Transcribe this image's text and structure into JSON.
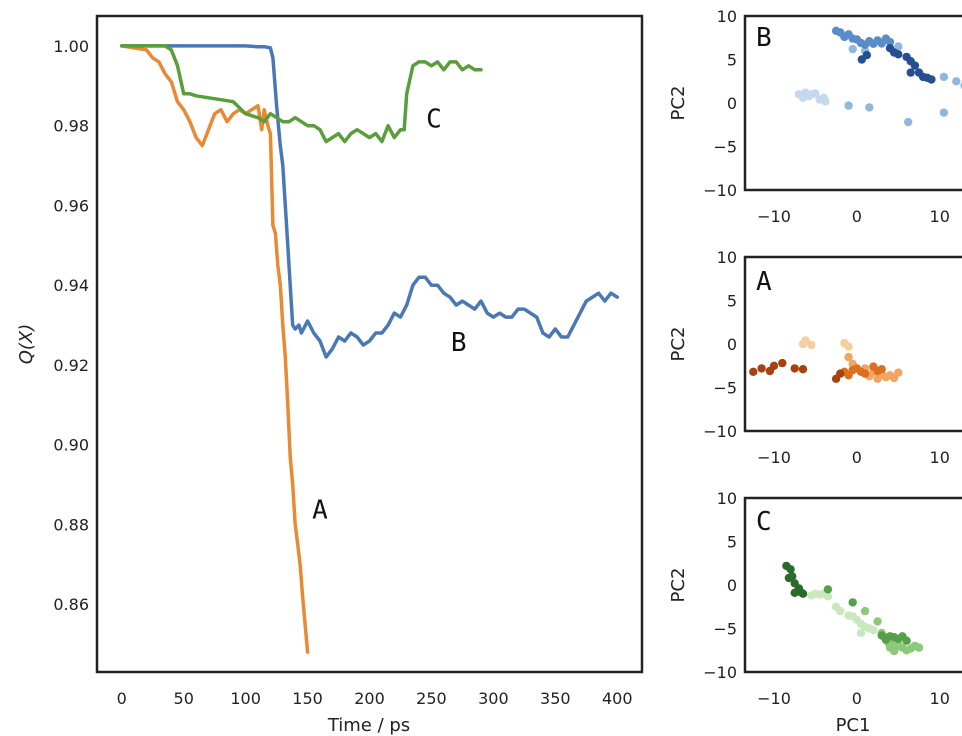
{
  "chart_data": [
    {
      "type": "line",
      "xlabel": "Time / ps",
      "ylabel": "Q(X)",
      "xlim": [
        -20,
        420
      ],
      "ylim": [
        0.843,
        1.0075
      ],
      "xticks": [
        0,
        50,
        100,
        150,
        200,
        250,
        300,
        350,
        400
      ],
      "yticks": [
        0.86,
        0.88,
        0.9,
        0.92,
        0.94,
        0.96,
        0.98,
        1.0
      ],
      "annotations": [
        {
          "text": "C",
          "x": 252,
          "y": 0.9795
        },
        {
          "text": "B",
          "x": 272,
          "y": 0.9235
        },
        {
          "text": "A",
          "x": 160,
          "y": 0.8815
        }
      ],
      "series": [
        {
          "name": "",
          "color": "#4a78b5",
          "x": [
            0,
            20,
            40,
            60,
            80,
            100,
            110,
            115,
            120,
            122,
            125,
            128,
            130,
            132,
            134,
            136,
            138,
            140,
            143,
            145,
            150,
            155,
            160,
            165,
            170,
            175,
            180,
            185,
            190,
            195,
            200,
            205,
            210,
            215,
            220,
            225,
            230,
            235,
            240,
            245,
            250,
            255,
            260,
            265,
            270,
            275,
            280,
            285,
            290,
            295,
            300,
            305,
            310,
            315,
            320,
            325,
            330,
            335,
            340,
            345,
            350,
            355,
            360,
            365,
            370,
            375,
            380,
            385,
            390,
            395,
            400
          ],
          "y": [
            1.0,
            1.0,
            1.0,
            1.0,
            1.0,
            1.0,
            0.9998,
            0.9998,
            0.9995,
            0.997,
            0.985,
            0.975,
            0.97,
            0.96,
            0.95,
            0.94,
            0.93,
            0.929,
            0.93,
            0.928,
            0.931,
            0.928,
            0.926,
            0.922,
            0.924,
            0.927,
            0.926,
            0.928,
            0.927,
            0.925,
            0.926,
            0.928,
            0.928,
            0.93,
            0.933,
            0.932,
            0.935,
            0.94,
            0.942,
            0.942,
            0.94,
            0.94,
            0.938,
            0.937,
            0.935,
            0.936,
            0.935,
            0.934,
            0.936,
            0.933,
            0.932,
            0.933,
            0.932,
            0.932,
            0.934,
            0.934,
            0.933,
            0.932,
            0.928,
            0.927,
            0.929,
            0.927,
            0.927,
            0.93,
            0.933,
            0.936,
            0.937,
            0.938,
            0.936,
            0.938,
            0.937
          ]
        },
        {
          "name": "",
          "color": "#e88a33",
          "x": [
            0,
            10,
            20,
            25,
            30,
            35,
            40,
            45,
            50,
            55,
            60,
            65,
            70,
            75,
            80,
            85,
            90,
            95,
            100,
            105,
            110,
            113,
            115,
            118,
            120,
            122,
            124,
            126,
            128,
            130,
            132,
            134,
            136,
            138,
            140,
            142,
            144,
            146,
            148,
            150
          ],
          "y": [
            1.0,
            0.9995,
            0.999,
            0.997,
            0.996,
            0.993,
            0.991,
            0.986,
            0.984,
            0.981,
            0.977,
            0.975,
            0.979,
            0.983,
            0.984,
            0.981,
            0.983,
            0.984,
            0.983,
            0.984,
            0.985,
            0.979,
            0.984,
            0.98,
            0.978,
            0.955,
            0.953,
            0.945,
            0.94,
            0.93,
            0.922,
            0.91,
            0.897,
            0.89,
            0.88,
            0.875,
            0.87,
            0.862,
            0.855,
            0.848
          ]
        },
        {
          "name": "",
          "color": "#5a9e3a",
          "x": [
            0,
            20,
            35,
            40,
            45,
            50,
            55,
            60,
            70,
            80,
            90,
            100,
            110,
            115,
            120,
            125,
            130,
            135,
            140,
            145,
            150,
            155,
            160,
            165,
            170,
            175,
            180,
            185,
            190,
            195,
            200,
            205,
            210,
            215,
            220,
            225,
            228,
            230,
            235,
            240,
            245,
            250,
            255,
            260,
            265,
            270,
            275,
            280,
            285,
            290
          ],
          "y": [
            1.0,
            1.0,
            1.0,
            0.999,
            0.995,
            0.988,
            0.988,
            0.9875,
            0.987,
            0.9865,
            0.986,
            0.983,
            0.982,
            0.981,
            0.983,
            0.982,
            0.981,
            0.981,
            0.982,
            0.981,
            0.98,
            0.98,
            0.979,
            0.976,
            0.977,
            0.978,
            0.976,
            0.978,
            0.979,
            0.978,
            0.977,
            0.978,
            0.976,
            0.98,
            0.977,
            0.979,
            0.979,
            0.988,
            0.995,
            0.996,
            0.996,
            0.995,
            0.996,
            0.994,
            0.996,
            0.996,
            0.994,
            0.995,
            0.994,
            0.994
          ]
        }
      ]
    },
    {
      "type": "scatter",
      "panel": "B",
      "xlabel": "",
      "ylabel": "PC2",
      "xlim": [
        -13.5,
        14.5
      ],
      "ylim": [
        -10,
        10
      ],
      "xticks": [
        -10,
        0,
        10
      ],
      "yticks": [
        -10,
        -5,
        0,
        5,
        10
      ],
      "label": "B",
      "groups": [
        {
          "color": "#c5d9ee",
          "points": [
            [
              -7,
              1
            ],
            [
              -6.5,
              0.6
            ],
            [
              -6.2,
              1.2
            ],
            [
              -5.8,
              0.8
            ],
            [
              -5.5,
              1.0
            ],
            [
              -5,
              1.1
            ],
            [
              -4.5,
              0.4
            ],
            [
              -4,
              0.6
            ],
            [
              -3.8,
              0.2
            ]
          ]
        },
        {
          "color": "#8fb8dc",
          "points": [
            [
              -1,
              -0.3
            ],
            [
              1.5,
              -0.5
            ],
            [
              6.2,
              -2.2
            ],
            [
              10.5,
              -1.1
            ],
            [
              10.5,
              3.0
            ],
            [
              12,
              2.5
            ],
            [
              13,
              2.0
            ],
            [
              14,
              1.0
            ],
            [
              -0.5,
              6.2
            ],
            [
              1,
              6
            ],
            [
              3,
              6.8
            ],
            [
              5,
              6.5
            ]
          ]
        },
        {
          "color": "#5a8dc7",
          "points": [
            [
              -2.5,
              8.3
            ],
            [
              -2,
              8.1
            ],
            [
              -1.5,
              7.6
            ],
            [
              -1,
              7.9
            ],
            [
              -0.5,
              7.4
            ],
            [
              0,
              7.3
            ],
            [
              0.5,
              6.9
            ],
            [
              1,
              6.7
            ],
            [
              1.5,
              7.1
            ],
            [
              2,
              6.8
            ],
            [
              2.5,
              7.2
            ],
            [
              3,
              6.9
            ],
            [
              3.5,
              7.4
            ],
            [
              4,
              7.0
            ]
          ]
        },
        {
          "color": "#244f93",
          "points": [
            [
              0.6,
              5.0
            ],
            [
              1.2,
              5.5
            ],
            [
              4,
              6.3
            ],
            [
              4.5,
              5.8
            ],
            [
              5,
              5.6
            ],
            [
              6,
              5.3
            ],
            [
              6.5,
              4.8
            ],
            [
              7,
              4.3
            ],
            [
              6.5,
              3.5
            ],
            [
              7.5,
              3.5
            ],
            [
              8,
              3.0
            ],
            [
              8.5,
              2.9
            ],
            [
              9,
              2.7
            ]
          ]
        }
      ]
    },
    {
      "type": "scatter",
      "panel": "A",
      "xlabel": "",
      "ylabel": "PC2",
      "xlim": [
        -13.5,
        14.5
      ],
      "ylim": [
        -10,
        10
      ],
      "xticks": [
        -10,
        0,
        10
      ],
      "yticks": [
        -10,
        -5,
        0,
        5,
        10
      ],
      "label": "A",
      "groups": [
        {
          "color": "#f6cfa0",
          "points": [
            [
              -6.5,
              0
            ],
            [
              -6.2,
              0.4
            ],
            [
              -5.5,
              -0.1
            ],
            [
              -1.5,
              0.1
            ],
            [
              -1,
              -0.3
            ]
          ]
        },
        {
          "color": "#f0a560",
          "points": [
            [
              -1,
              -1.5
            ],
            [
              -0.5,
              -2.3
            ],
            [
              1,
              -2.8
            ],
            [
              2,
              -3.2
            ],
            [
              3,
              -3.5
            ],
            [
              4,
              -3.6
            ],
            [
              5,
              -3.3
            ],
            [
              4.5,
              -3.9
            ],
            [
              3.5,
              -3.8
            ],
            [
              2.5,
              -4.0
            ],
            [
              1.5,
              -3.7
            ]
          ]
        },
        {
          "color": "#dd7020",
          "points": [
            [
              -1.5,
              -3.2
            ],
            [
              -1,
              -3.6
            ],
            [
              -0.5,
              -3.0
            ],
            [
              0,
              -2.8
            ],
            [
              0.5,
              -3.2
            ],
            [
              1,
              -3.4
            ],
            [
              2,
              -2.6
            ],
            [
              2.5,
              -3.1
            ],
            [
              3,
              -2.9
            ]
          ]
        },
        {
          "color": "#a84010",
          "points": [
            [
              -12.5,
              -3.2
            ],
            [
              -11.5,
              -2.8
            ],
            [
              -10.5,
              -3.1
            ],
            [
              -10,
              -2.5
            ],
            [
              -9,
              -2.2
            ],
            [
              -7.5,
              -2.8
            ],
            [
              -6.5,
              -2.9
            ],
            [
              -2.5,
              -4.0
            ],
            [
              -2,
              -3.4
            ]
          ]
        }
      ]
    },
    {
      "type": "scatter",
      "panel": "C",
      "xlabel": "PC1",
      "ylabel": "PC2",
      "xlim": [
        -13.5,
        14.5
      ],
      "ylim": [
        -10,
        10
      ],
      "xticks": [
        -10,
        0,
        10
      ],
      "yticks": [
        -10,
        -5,
        0,
        5,
        10
      ],
      "label": "C",
      "groups": [
        {
          "color": "#cbe7bf",
          "points": [
            [
              -5.5,
              -1.2
            ],
            [
              -5,
              -1.0
            ],
            [
              -4.5,
              -1.1
            ],
            [
              -4,
              -1.0
            ],
            [
              -3.5,
              -1.3
            ],
            [
              -2.5,
              -2.5
            ],
            [
              -2,
              -3.0
            ],
            [
              -1,
              -3.5
            ],
            [
              -0.5,
              -3.6
            ],
            [
              0,
              -4.0
            ],
            [
              0.5,
              -4.5
            ],
            [
              1,
              -4.8
            ],
            [
              1.5,
              -5.0
            ],
            [
              2,
              -5.2
            ],
            [
              0.5,
              -5.5
            ]
          ]
        },
        {
          "color": "#8ec97a",
          "points": [
            [
              1,
              -3.0
            ],
            [
              2.5,
              -4.2
            ],
            [
              3,
              -5.5
            ],
            [
              3.5,
              -6.0
            ],
            [
              4,
              -6.2
            ],
            [
              4.5,
              -6.5
            ],
            [
              5,
              -7.0
            ],
            [
              5.5,
              -7.2
            ],
            [
              6,
              -7.5
            ],
            [
              6.5,
              -7.3
            ],
            [
              7,
              -7.0
            ],
            [
              7.5,
              -7.2
            ],
            [
              5,
              -6.8
            ],
            [
              4,
              -7.2
            ],
            [
              4.5,
              -7.6
            ],
            [
              3.8,
              -6.6
            ]
          ]
        },
        {
          "color": "#55a048",
          "points": [
            [
              -3.5,
              -0.5
            ],
            [
              -0.5,
              -2.0
            ],
            [
              3,
              -5.8
            ],
            [
              3.5,
              -6.3
            ],
            [
              4,
              -5.9
            ],
            [
              4.5,
              -6.0
            ],
            [
              5,
              -6.2
            ],
            [
              5.5,
              -5.9
            ],
            [
              6,
              -6.4
            ]
          ]
        },
        {
          "color": "#2b6a2a",
          "points": [
            [
              -8.5,
              2.2
            ],
            [
              -8,
              1.8
            ],
            [
              -8.2,
              0.8
            ],
            [
              -7.8,
              1.0
            ],
            [
              -7.5,
              0.2
            ],
            [
              -7,
              -0.4
            ],
            [
              -6.8,
              -0.8
            ],
            [
              -7.5,
              -0.9
            ],
            [
              -6.5,
              -1.0
            ]
          ]
        }
      ]
    }
  ]
}
